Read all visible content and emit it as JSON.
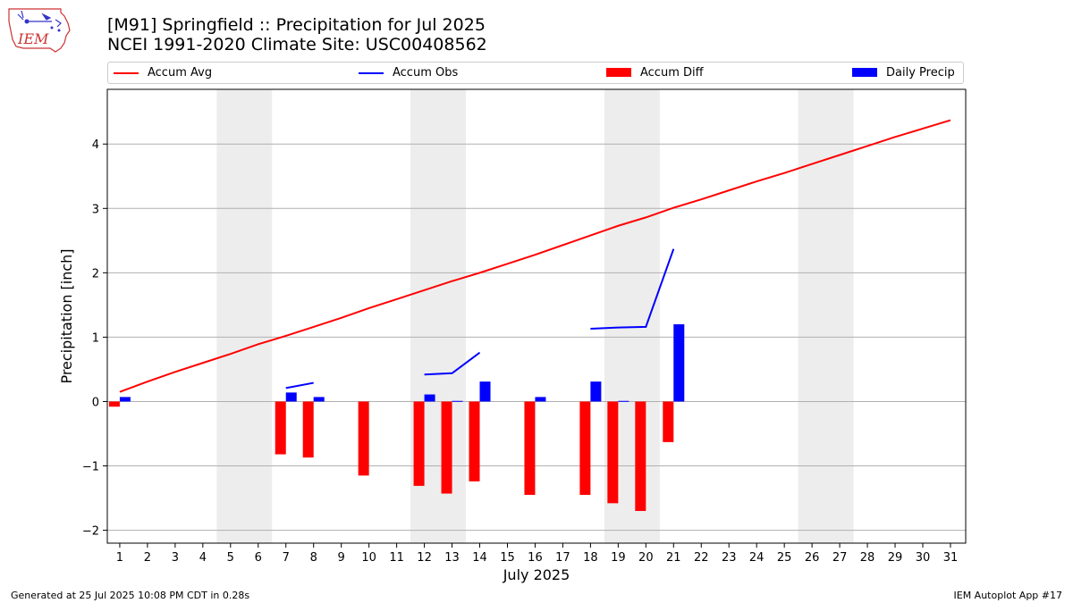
{
  "logo": {
    "text": "IEM"
  },
  "title_line1": "[M91] Springfield :: Precipitation for Jul 2025",
  "title_line2": "NCEI 1991-2020 Climate Site: USC00408562",
  "footer_left": "Generated at 25 Jul 2025 10:08 PM CDT in 0.28s",
  "footer_right": "IEM Autoplot App #17",
  "chart_data": {
    "type": "bar",
    "xlabel": "July 2025",
    "ylabel": "Precipitation [inch]",
    "ylim": [
      -2.2,
      4.85
    ],
    "xlim": [
      0.55,
      31.55
    ],
    "grid": "horizontal",
    "legend_position": "top",
    "x_ticks": [
      1,
      2,
      3,
      4,
      5,
      6,
      7,
      8,
      9,
      10,
      11,
      12,
      13,
      14,
      15,
      16,
      17,
      18,
      19,
      20,
      21,
      22,
      23,
      24,
      25,
      26,
      27,
      28,
      29,
      30,
      31
    ],
    "y_ticks": [
      -2,
      -1,
      0,
      1,
      2,
      3,
      4
    ],
    "weekend_days": [
      5,
      6,
      12,
      13,
      19,
      20,
      26,
      27
    ],
    "legend": [
      {
        "label": "Accum Avg",
        "color": "#ff0000",
        "kind": "line"
      },
      {
        "label": "Accum Obs",
        "color": "#0000ff",
        "kind": "line"
      },
      {
        "label": "Accum Diff",
        "color": "#ff0000",
        "kind": "bar"
      },
      {
        "label": "Daily Precip",
        "color": "#0000ff",
        "kind": "bar"
      }
    ],
    "accum_avg": {
      "days": [
        1,
        2,
        3,
        4,
        5,
        6,
        7,
        8,
        9,
        10,
        11,
        12,
        13,
        14,
        15,
        16,
        17,
        18,
        19,
        20,
        21,
        22,
        23,
        24,
        25,
        26,
        27,
        28,
        29,
        30,
        31
      ],
      "values": [
        0.15,
        0.31,
        0.46,
        0.6,
        0.74,
        0.89,
        1.02,
        1.16,
        1.3,
        1.45,
        1.59,
        1.73,
        1.87,
        2.0,
        2.14,
        2.28,
        2.43,
        2.58,
        2.73,
        2.86,
        3.01,
        3.14,
        3.28,
        3.42,
        3.55,
        3.69,
        3.83,
        3.97,
        4.11,
        4.24,
        4.37
      ]
    },
    "accum_obs": [
      {
        "days": [
          7,
          8
        ],
        "values": [
          0.21,
          0.29
        ]
      },
      {
        "days": [
          12,
          13,
          14
        ],
        "values": [
          0.42,
          0.44,
          0.76
        ]
      },
      {
        "days": [
          18,
          19,
          20,
          21
        ],
        "values": [
          1.13,
          1.15,
          1.16,
          2.37
        ]
      }
    ],
    "accum_diff": {
      "days": [
        1,
        7,
        8,
        10,
        12,
        13,
        14,
        16,
        18,
        19,
        20,
        21
      ],
      "values": [
        -0.08,
        -0.82,
        -0.87,
        -1.15,
        -1.31,
        -1.43,
        -1.24,
        -1.45,
        -1.45,
        -1.58,
        -1.7,
        -0.63
      ]
    },
    "daily_precip": {
      "days": [
        1,
        7,
        8,
        12,
        13,
        14,
        16,
        18,
        19,
        21
      ],
      "values": [
        0.07,
        0.14,
        0.07,
        0.11,
        0.01,
        0.31,
        0.07,
        0.31,
        0.01,
        1.2
      ]
    }
  }
}
